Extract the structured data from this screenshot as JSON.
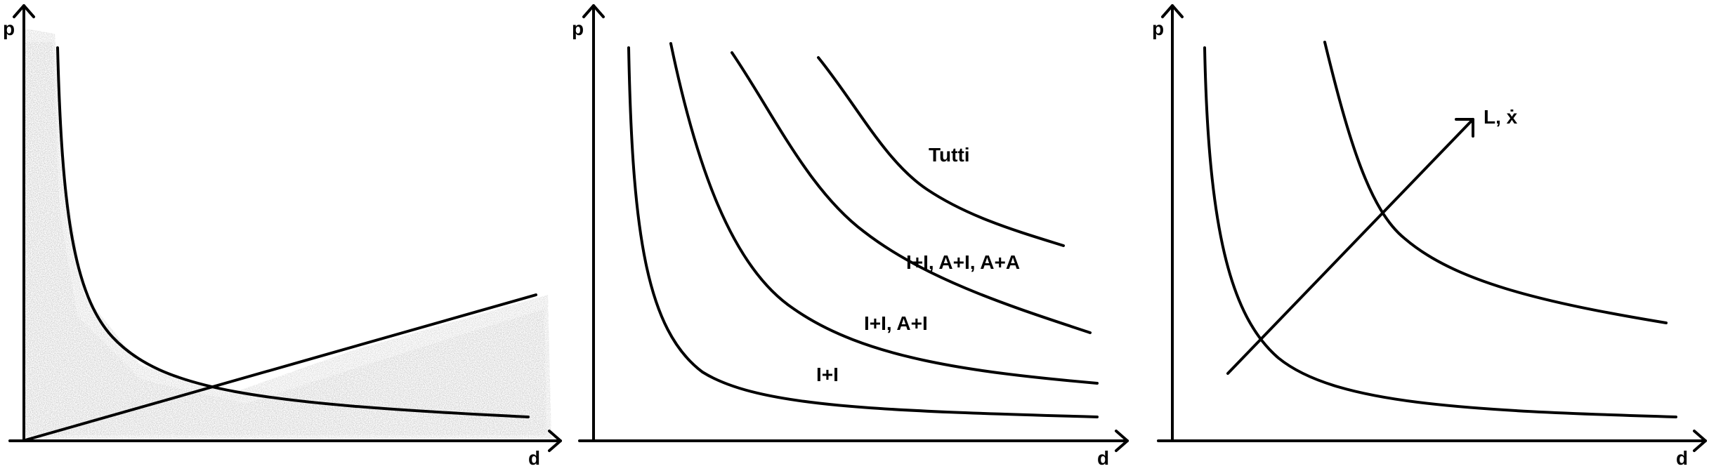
{
  "panels": [
    {
      "x_label": "d",
      "y_label": "p",
      "curves": [
        {
          "kind": "hyperbola"
        },
        {
          "kind": "line"
        }
      ],
      "labels": [],
      "shaded_region": true
    },
    {
      "x_label": "d",
      "y_label": "p",
      "curves": [
        {
          "kind": "hyperbola"
        },
        {
          "kind": "hyperbola"
        },
        {
          "kind": "hyperbola"
        },
        {
          "kind": "hyperbola"
        }
      ],
      "labels": [
        {
          "text": "I+I"
        },
        {
          "text": "I+I, A+I"
        },
        {
          "text": "I+I, A+I, A+A"
        },
        {
          "text": "Tutti"
        }
      ],
      "shaded_region": false
    },
    {
      "x_label": "d",
      "y_label": "p",
      "curves": [
        {
          "kind": "hyperbola"
        },
        {
          "kind": "hyperbola"
        },
        {
          "kind": "arrow"
        }
      ],
      "labels": [
        {
          "text": "L, ẋ"
        }
      ],
      "shaded_region": false
    }
  ]
}
